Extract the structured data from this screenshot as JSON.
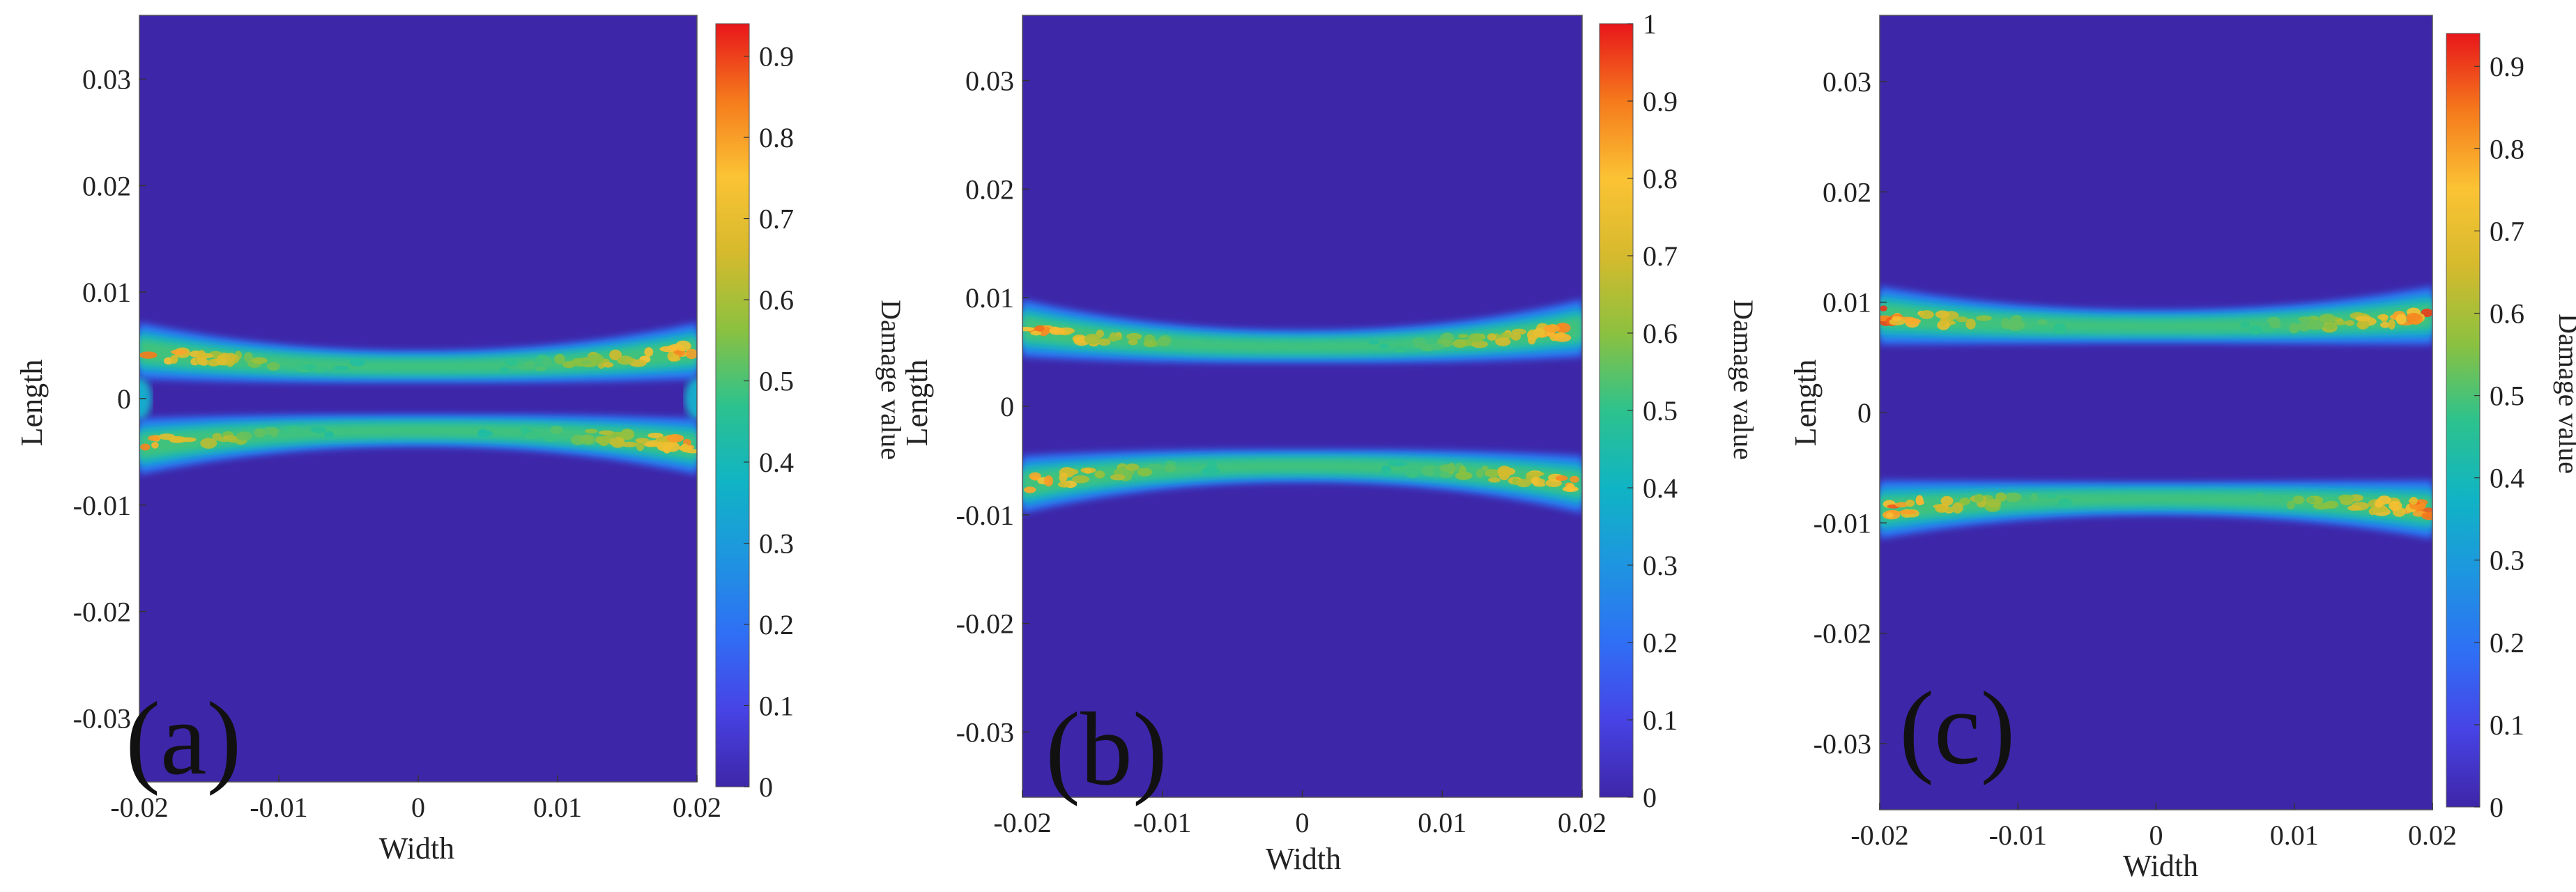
{
  "chart_data": [
    {
      "type": "heatmap",
      "panel_label": "(a)",
      "xlabel": "Width",
      "ylabel": "Length",
      "colorbar_label": "Damage value",
      "xlim": [
        -0.02,
        0.02
      ],
      "ylim": [
        -0.036,
        0.036
      ],
      "xticks": [
        -0.02,
        -0.01,
        0,
        0.01,
        0.02
      ],
      "xtick_labels": [
        "-0.02",
        "-0.01",
        "0",
        "0.01",
        "0.02"
      ],
      "yticks": [
        -0.03,
        -0.02,
        -0.01,
        0,
        0.01,
        0.02,
        0.03
      ],
      "ytick_labels": [
        "-0.03",
        "-0.02",
        "-0.01",
        "0",
        "0.01",
        "0.02",
        "0.03"
      ],
      "colorbar_range": [
        0,
        0.94
      ],
      "colorbar_ticks": [
        0,
        0.1,
        0.2,
        0.3,
        0.4,
        0.5,
        0.6,
        0.7,
        0.8,
        0.9
      ],
      "colorbar_tick_labels": [
        "0",
        "0.1",
        "0.2",
        "0.3",
        "0.4",
        "0.5",
        "0.6",
        "0.7",
        "0.8",
        "0.9"
      ],
      "damage_bands": [
        {
          "name": "upper",
          "center_at_edge": 0.0045,
          "center_at_middle": 0.003,
          "peak_damage": 0.94
        },
        {
          "name": "lower",
          "center_at_edge": -0.0045,
          "center_at_middle": -0.003,
          "peak_damage": 0.9
        }
      ],
      "edge_spot": {
        "x": 0.02,
        "y": 0,
        "damage": 0.35
      }
    },
    {
      "type": "heatmap",
      "panel_label": "(b)",
      "xlabel": "Width",
      "ylabel": "Length",
      "colorbar_label": "Damage value",
      "xlim": [
        -0.02,
        0.02
      ],
      "ylim": [
        -0.036,
        0.036
      ],
      "xticks": [
        -0.02,
        -0.01,
        0,
        0.01,
        0.02
      ],
      "xtick_labels": [
        "-0.02",
        "-0.01",
        "0",
        "0.01",
        "0.02"
      ],
      "yticks": [
        -0.03,
        -0.02,
        -0.01,
        0,
        0.01,
        0.02,
        0.03
      ],
      "ytick_labels": [
        "-0.03",
        "-0.02",
        "-0.01",
        "0",
        "0.01",
        "0.02",
        "0.03"
      ],
      "colorbar_range": [
        0,
        1
      ],
      "colorbar_ticks": [
        0,
        0.1,
        0.2,
        0.3,
        0.4,
        0.5,
        0.6,
        0.7,
        0.8,
        0.9,
        1
      ],
      "colorbar_tick_labels": [
        "0",
        "0.1",
        "0.2",
        "0.3",
        "0.4",
        "0.5",
        "0.6",
        "0.7",
        "0.8",
        "0.9",
        "1"
      ],
      "damage_bands": [
        {
          "name": "upper",
          "center_at_edge": 0.0072,
          "center_at_middle": 0.0055,
          "peak_damage": 1.0
        },
        {
          "name": "lower",
          "center_at_edge": -0.0072,
          "center_at_middle": -0.0055,
          "peak_damage": 0.97
        }
      ]
    },
    {
      "type": "heatmap",
      "panel_label": "(c)",
      "xlabel": "Width",
      "ylabel": "Length",
      "colorbar_label": "Damage value",
      "xlim": [
        -0.02,
        0.02
      ],
      "ylim": [
        -0.036,
        0.036
      ],
      "xticks": [
        -0.02,
        -0.01,
        0,
        0.01,
        0.02
      ],
      "xtick_labels": [
        "-0.02",
        "-0.01",
        "0",
        "0.01",
        "0.02"
      ],
      "yticks": [
        -0.03,
        -0.02,
        -0.01,
        0,
        0.01,
        0.02,
        0.03
      ],
      "ytick_labels": [
        "-0.03",
        "-0.02",
        "-0.01",
        "0",
        "0.01",
        "0.02",
        "0.03"
      ],
      "colorbar_range": [
        0,
        0.94
      ],
      "colorbar_ticks": [
        0,
        0.1,
        0.2,
        0.3,
        0.4,
        0.5,
        0.6,
        0.7,
        0.8,
        0.9
      ],
      "colorbar_tick_labels": [
        "0",
        "0.1",
        "0.2",
        "0.3",
        "0.4",
        "0.5",
        "0.6",
        "0.7",
        "0.8",
        "0.9"
      ],
      "damage_bands": [
        {
          "name": "upper",
          "center_at_edge": 0.0088,
          "center_at_middle": 0.0078,
          "peak_damage": 0.94
        },
        {
          "name": "lower",
          "center_at_edge": -0.0088,
          "center_at_middle": -0.0078,
          "peak_damage": 0.93
        }
      ]
    }
  ],
  "colors": {
    "background_field": "#3e26a8",
    "colormap": [
      "#3e26a8",
      "#4743e5",
      "#2f6ff5",
      "#1e95e0",
      "#10b4c4",
      "#2dc28d",
      "#8cc13f",
      "#d6ba2d",
      "#fbc334",
      "#f57a1c",
      "#e8161b"
    ]
  }
}
